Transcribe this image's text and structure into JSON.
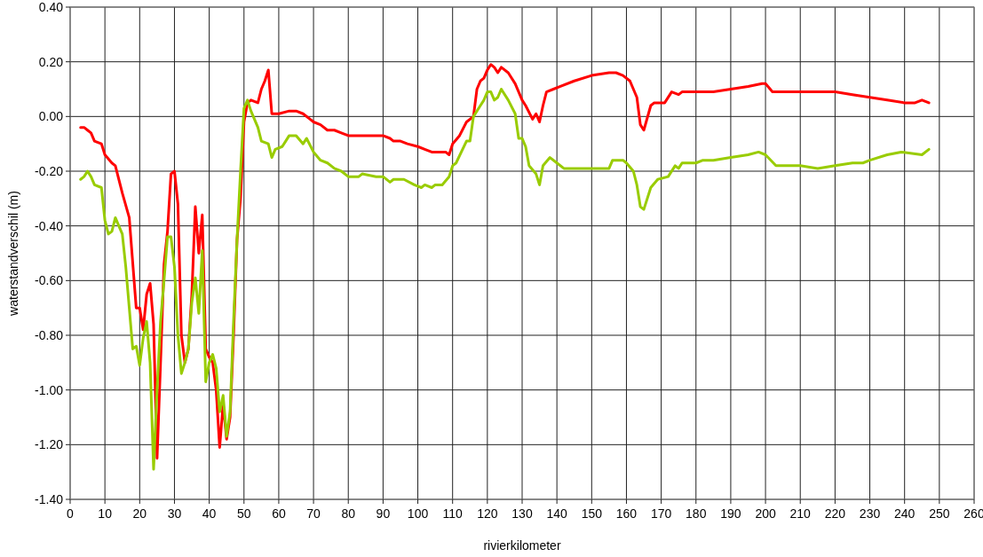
{
  "chart_data": {
    "type": "line",
    "xlabel": "rivierkilometer",
    "ylabel": "waterstandverschil (m)",
    "xlim": [
      0,
      260
    ],
    "xticks": [
      0,
      10,
      20,
      30,
      40,
      50,
      60,
      70,
      80,
      90,
      100,
      110,
      120,
      130,
      140,
      150,
      160,
      170,
      180,
      190,
      200,
      210,
      220,
      230,
      240,
      250,
      260
    ],
    "ylim": [
      -1.4,
      0.4
    ],
    "yticks": [
      {
        "value": -1.4,
        "label": "-1.40"
      },
      {
        "value": -1.2,
        "label": "-1.20"
      },
      {
        "value": -1,
        "label": "-1.00"
      },
      {
        "value": -0.8,
        "label": "-0.80"
      },
      {
        "value": -0.6,
        "label": "-0.60"
      },
      {
        "value": -0.4,
        "label": "-0.40"
      },
      {
        "value": -0.2,
        "label": "-0.20"
      },
      {
        "value": 0,
        "label": "0.00"
      },
      {
        "value": 0.2,
        "label": "0.20"
      },
      {
        "value": 0.4,
        "label": "0.40"
      }
    ],
    "grid": true,
    "marker": "none",
    "line_style": "solid",
    "series": [
      {
        "color": "#ff0000",
        "x": [
          3,
          4,
          5,
          6,
          7,
          9,
          10,
          12,
          13,
          15,
          17,
          19,
          20,
          21,
          22,
          23,
          24,
          25,
          26,
          27,
          28,
          29,
          30,
          31,
          32,
          33,
          34,
          35,
          36,
          37,
          38,
          39,
          40,
          41,
          42,
          43,
          44,
          45,
          46,
          47,
          48,
          49,
          50,
          51,
          52,
          54,
          55,
          56,
          57,
          58,
          60,
          63,
          65,
          67,
          69,
          70,
          72,
          74,
          76,
          78,
          80,
          85,
          90,
          92,
          93,
          95,
          97,
          100,
          102,
          104,
          106,
          108,
          109,
          110,
          112,
          114,
          116,
          117,
          118,
          119,
          120,
          121,
          122,
          123,
          124,
          126,
          128,
          130,
          131,
          133,
          134,
          135,
          136,
          137,
          139,
          141,
          145,
          150,
          155,
          157,
          159,
          161,
          163,
          164,
          165,
          167,
          168,
          171,
          173,
          175,
          176,
          180,
          185,
          190,
          195,
          199,
          200,
          202,
          205,
          210,
          215,
          220,
          225,
          230,
          235,
          240,
          243,
          245,
          247
        ],
        "values": [
          -0.04,
          -0.04,
          -0.05,
          -0.06,
          -0.09,
          -0.1,
          -0.14,
          -0.17,
          -0.18,
          -0.28,
          -0.37,
          -0.7,
          -0.7,
          -0.78,
          -0.65,
          -0.61,
          -0.76,
          -1.25,
          -0.9,
          -0.54,
          -0.42,
          -0.21,
          -0.2,
          -0.32,
          -0.8,
          -0.9,
          -0.85,
          -0.65,
          -0.33,
          -0.5,
          -0.36,
          -0.85,
          -0.88,
          -0.9,
          -1,
          -1.21,
          -1.05,
          -1.18,
          -1.1,
          -0.8,
          -0.45,
          -0.3,
          -0.02,
          0.05,
          0.06,
          0.05,
          0.1,
          0.13,
          0.17,
          0.01,
          0.01,
          0.02,
          0.02,
          0.01,
          -0.01,
          -0.02,
          -0.03,
          -0.05,
          -0.05,
          -0.06,
          -0.07,
          -0.07,
          -0.07,
          -0.08,
          -0.09,
          -0.09,
          -0.1,
          -0.11,
          -0.12,
          -0.13,
          -0.13,
          -0.13,
          -0.14,
          -0.1,
          -0.07,
          -0.02,
          0,
          0.1,
          0.13,
          0.14,
          0.17,
          0.19,
          0.18,
          0.16,
          0.18,
          0.16,
          0.12,
          0.06,
          0.04,
          -0.01,
          0.01,
          -0.02,
          0.04,
          0.09,
          0.1,
          0.11,
          0.13,
          0.15,
          0.16,
          0.16,
          0.15,
          0.13,
          0.07,
          -0.03,
          -0.05,
          0.04,
          0.05,
          0.05,
          0.09,
          0.08,
          0.09,
          0.09,
          0.09,
          0.1,
          0.11,
          0.12,
          0.12,
          0.09,
          0.09,
          0.09,
          0.09,
          0.09,
          0.08,
          0.07,
          0.06,
          0.05,
          0.05,
          0.06,
          0.05
        ]
      },
      {
        "color": "#99cc00",
        "x": [
          3,
          4,
          5,
          6,
          7,
          9,
          10,
          11,
          12,
          13,
          15,
          16,
          17,
          18,
          19,
          20,
          21,
          22,
          23,
          24,
          25,
          26,
          27,
          28,
          29,
          30,
          31,
          32,
          33,
          34,
          35,
          36,
          37,
          38,
          39,
          40,
          41,
          42,
          43,
          44,
          45,
          46,
          47,
          48,
          49,
          50,
          51,
          52,
          54,
          55,
          57,
          58,
          59,
          61,
          62,
          63,
          65,
          67,
          68,
          70,
          72,
          74,
          76,
          78,
          80,
          83,
          84,
          88,
          90,
          92,
          93,
          96,
          99,
          101,
          102,
          104,
          105,
          107,
          109,
          110,
          111,
          114,
          115,
          116,
          118,
          119,
          120,
          121,
          122,
          123,
          124,
          126,
          128,
          129,
          130,
          131,
          132,
          134,
          135,
          136,
          138,
          140,
          142,
          145,
          150,
          155,
          156,
          159,
          160,
          162,
          163,
          164,
          165,
          167,
          169,
          172,
          174,
          175,
          176,
          180,
          182,
          185,
          190,
          195,
          198,
          200,
          203,
          210,
          215,
          220,
          225,
          228,
          230,
          235,
          239,
          245,
          247
        ],
        "values": [
          -0.23,
          -0.22,
          -0.2,
          -0.22,
          -0.25,
          -0.26,
          -0.38,
          -0.43,
          -0.42,
          -0.37,
          -0.43,
          -0.55,
          -0.7,
          -0.85,
          -0.84,
          -0.91,
          -0.81,
          -0.75,
          -0.9,
          -1.29,
          -1,
          -0.75,
          -0.6,
          -0.44,
          -0.44,
          -0.55,
          -0.8,
          -0.94,
          -0.9,
          -0.85,
          -0.68,
          -0.59,
          -0.72,
          -0.49,
          -0.97,
          -0.9,
          -0.87,
          -0.92,
          -1.08,
          -1.02,
          -1.17,
          -1.08,
          -0.75,
          -0.45,
          -0.2,
          0.03,
          0.06,
          0.02,
          -0.04,
          -0.09,
          -0.1,
          -0.15,
          -0.12,
          -0.11,
          -0.09,
          -0.07,
          -0.07,
          -0.1,
          -0.08,
          -0.13,
          -0.16,
          -0.17,
          -0.19,
          -0.2,
          -0.22,
          -0.22,
          -0.21,
          -0.22,
          -0.22,
          -0.24,
          -0.23,
          -0.23,
          -0.25,
          -0.26,
          -0.25,
          -0.26,
          -0.25,
          -0.25,
          -0.22,
          -0.18,
          -0.17,
          -0.09,
          -0.09,
          0,
          0.04,
          0.06,
          0.09,
          0.09,
          0.06,
          0.07,
          0.1,
          0.06,
          0.01,
          -0.08,
          -0.08,
          -0.11,
          -0.18,
          -0.21,
          -0.25,
          -0.18,
          -0.15,
          -0.17,
          -0.19,
          -0.19,
          -0.19,
          -0.19,
          -0.16,
          -0.16,
          -0.17,
          -0.2,
          -0.25,
          -0.33,
          -0.34,
          -0.26,
          -0.23,
          -0.22,
          -0.18,
          -0.19,
          -0.17,
          -0.17,
          -0.16,
          -0.16,
          -0.15,
          -0.14,
          -0.13,
          -0.14,
          -0.18,
          -0.18,
          -0.19,
          -0.18,
          -0.17,
          -0.17,
          -0.16,
          -0.14,
          -0.13,
          -0.14,
          -0.12
        ]
      }
    ]
  }
}
